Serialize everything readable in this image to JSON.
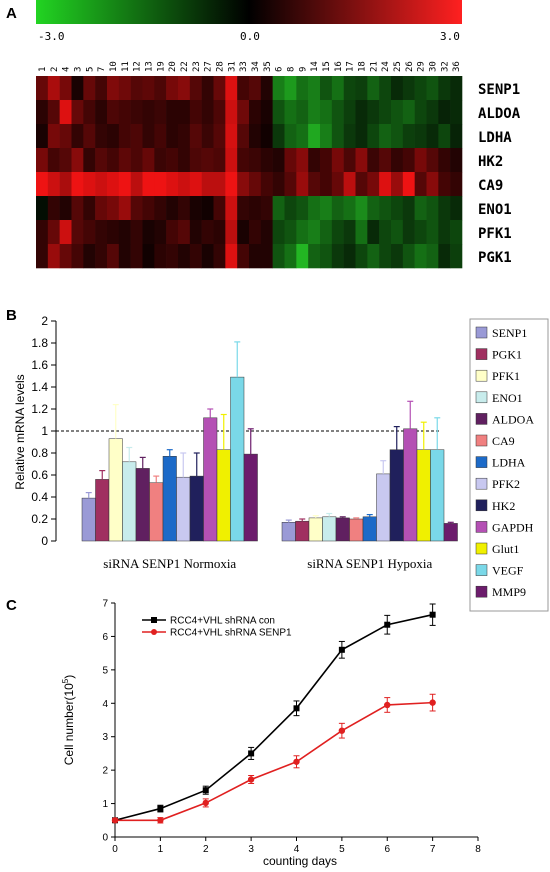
{
  "panels": {
    "a": "A",
    "b": "B",
    "c": "C"
  },
  "chart_data": [
    {
      "type": "heatmap",
      "color_scale": {
        "min_label": "-3.0",
        "mid_label": "0.0",
        "max_label": "3.0",
        "min": -3.0,
        "max": 3.0,
        "colors": [
          "#2ecc2e",
          "#000000",
          "#ff2020"
        ]
      },
      "columns": [
        "1",
        "2",
        "4",
        "3",
        "5",
        "7",
        "10",
        "11",
        "12",
        "13",
        "19",
        "20",
        "22",
        "23",
        "27",
        "28",
        "31",
        "33",
        "34",
        "35",
        "6",
        "8",
        "9",
        "14",
        "15",
        "16",
        "17",
        "18",
        "21",
        "24",
        "25",
        "26",
        "29",
        "30",
        "32",
        "36"
      ],
      "rows": [
        "SENP1",
        "ALDOA",
        "LDHA",
        "HK2",
        "CA9",
        "ENO1",
        "PFK1",
        "PGK1"
      ],
      "values": [
        [
          1.2,
          2.0,
          1.4,
          0.3,
          1.2,
          0.8,
          1.5,
          1.3,
          1.0,
          1.1,
          0.9,
          1.4,
          1.6,
          1.0,
          0.6,
          1.2,
          2.6,
          0.8,
          1.0,
          0.4,
          -1.8,
          -2.2,
          -1.6,
          -1.8,
          -1.2,
          -1.6,
          -1.0,
          -0.9,
          -1.4,
          -1.0,
          -0.6,
          -0.8,
          -1.0,
          -1.2,
          -0.8,
          -0.6
        ],
        [
          0.5,
          1.0,
          2.6,
          1.2,
          0.8,
          0.5,
          0.9,
          0.8,
          0.7,
          0.6,
          0.7,
          0.5,
          0.5,
          0.8,
          0.6,
          0.9,
          2.4,
          1.3,
          0.5,
          0.3,
          -1.2,
          -1.6,
          -1.4,
          -1.8,
          -1.6,
          -1.2,
          -0.9,
          -0.6,
          -0.8,
          -1.0,
          -1.2,
          -1.4,
          -1.0,
          -0.8,
          -0.5,
          -0.6
        ],
        [
          0.3,
          1.4,
          1.2,
          0.6,
          1.0,
          0.6,
          0.5,
          0.8,
          0.9,
          0.6,
          0.8,
          0.5,
          0.6,
          1.0,
          0.7,
          1.0,
          2.5,
          1.0,
          0.4,
          0.2,
          -0.8,
          -1.4,
          -1.6,
          -2.4,
          -1.8,
          -1.2,
          -0.8,
          -0.6,
          -1.0,
          -1.4,
          -1.2,
          -0.9,
          -0.8,
          -0.6,
          -1.0,
          -0.5
        ],
        [
          1.4,
          0.8,
          1.0,
          1.6,
          0.6,
          1.0,
          0.8,
          1.1,
          0.9,
          1.2,
          0.7,
          0.8,
          0.6,
          0.9,
          1.0,
          0.9,
          2.4,
          0.8,
          0.7,
          0.5,
          0.4,
          1.2,
          1.6,
          0.6,
          0.8,
          1.4,
          0.9,
          1.6,
          0.7,
          1.0,
          0.6,
          0.8,
          1.4,
          1.0,
          0.6,
          0.4
        ],
        [
          2.8,
          2.4,
          2.0,
          2.8,
          2.6,
          2.4,
          2.6,
          2.8,
          2.2,
          2.8,
          2.8,
          2.6,
          2.4,
          2.6,
          2.2,
          2.2,
          2.8,
          1.6,
          1.2,
          0.8,
          0.6,
          1.0,
          1.8,
          1.0,
          0.8,
          1.2,
          2.2,
          1.0,
          1.4,
          2.6,
          1.8,
          2.8,
          1.0,
          1.6,
          0.8,
          0.6
        ],
        [
          -0.2,
          0.6,
          0.4,
          1.0,
          0.6,
          1.2,
          1.4,
          1.8,
          1.0,
          0.8,
          0.6,
          0.4,
          0.6,
          0.3,
          0.2,
          0.8,
          2.4,
          0.6,
          0.5,
          0.6,
          -1.4,
          -1.0,
          -1.2,
          -1.6,
          -1.8,
          -1.4,
          -1.6,
          -2.0,
          -1.4,
          -1.2,
          -1.0,
          -0.8,
          -1.4,
          -1.2,
          -0.8,
          -0.6
        ],
        [
          0.6,
          1.2,
          2.4,
          1.0,
          0.8,
          0.6,
          0.5,
          0.4,
          0.6,
          0.3,
          0.4,
          0.8,
          1.0,
          0.4,
          0.6,
          0.5,
          2.2,
          0.3,
          0.6,
          0.4,
          -1.0,
          -1.2,
          -1.6,
          -1.8,
          -1.4,
          -1.0,
          -0.8,
          -1.6,
          -0.6,
          -1.0,
          -1.2,
          -0.8,
          -1.0,
          -1.2,
          -0.8,
          -1.0
        ],
        [
          0.6,
          1.8,
          1.2,
          0.8,
          0.4,
          0.6,
          1.0,
          0.4,
          0.6,
          0.2,
          0.5,
          0.6,
          0.4,
          0.6,
          0.3,
          0.6,
          2.6,
          0.8,
          0.4,
          0.4,
          -1.2,
          -1.6,
          -2.6,
          -1.4,
          -1.2,
          -0.8,
          -0.6,
          -1.0,
          -1.4,
          -1.0,
          -0.8,
          -1.2,
          -1.6,
          -1.4,
          -0.6,
          -0.9
        ]
      ]
    },
    {
      "type": "bar",
      "ylabel": "Relative mRNA levels",
      "ylim": [
        0,
        2
      ],
      "yticks": [
        "0",
        "0.2",
        "0.4",
        "0.6",
        "0.8",
        "1",
        "1.2",
        "1.4",
        "1.6",
        "1.8",
        "2"
      ],
      "reference_line": 1,
      "categories": [
        "siRNA SENP1 Normoxia",
        "siRNA SENP1 Hypoxia"
      ],
      "series": [
        {
          "name": "SENP1",
          "color": "#9a9ad6",
          "values": [
            0.39,
            0.17
          ],
          "errors": [
            0.05,
            0.02
          ]
        },
        {
          "name": "PGK1",
          "color": "#a03060",
          "values": [
            0.56,
            0.18
          ],
          "errors": [
            0.08,
            0.02
          ]
        },
        {
          "name": "PFK1",
          "color": "#ffffc8",
          "values": [
            0.93,
            0.21
          ],
          "errors": [
            0.31,
            0.02
          ]
        },
        {
          "name": "ENO1",
          "color": "#c8ecec",
          "values": [
            0.72,
            0.22
          ],
          "errors": [
            0.13,
            0.03
          ]
        },
        {
          "name": "ALDOA",
          "color": "#602060",
          "values": [
            0.66,
            0.21
          ],
          "errors": [
            0.1,
            0.01
          ]
        },
        {
          "name": "CA9",
          "color": "#f08080",
          "values": [
            0.53,
            0.2
          ],
          "errors": [
            0.06,
            0.01
          ]
        },
        {
          "name": "LDHA",
          "color": "#1c6ac8",
          "values": [
            0.77,
            0.22
          ],
          "errors": [
            0.06,
            0.02
          ]
        },
        {
          "name": "PFK2",
          "color": "#c8c8f0",
          "values": [
            0.58,
            0.61
          ],
          "errors": [
            0.22,
            0.12
          ]
        },
        {
          "name": "HK2",
          "color": "#20205c",
          "values": [
            0.59,
            0.83
          ],
          "errors": [
            0.21,
            0.21
          ]
        },
        {
          "name": "GAPDH",
          "color": "#b450b4",
          "values": [
            1.12,
            1.02
          ],
          "errors": [
            0.08,
            0.25
          ]
        },
        {
          "name": "Glut1",
          "color": "#f0f000",
          "values": [
            0.83,
            0.83
          ],
          "errors": [
            0.32,
            0.25
          ]
        },
        {
          "name": "VEGF",
          "color": "#7ad8e8",
          "values": [
            1.49,
            0.83
          ],
          "errors": [
            0.32,
            0.29
          ]
        },
        {
          "name": "MMP9",
          "color": "#6c1c6c",
          "values": [
            0.79,
            0.16
          ],
          "errors": [
            0.23,
            0.01
          ]
        }
      ]
    },
    {
      "type": "line",
      "xlabel": "counting days",
      "ylabel": "Cell number(10",
      "ylabel_sup": "5",
      "ylabel_end": ")",
      "xlim": [
        0,
        8
      ],
      "ylim": [
        0,
        7
      ],
      "xticks": [
        "0",
        "1",
        "2",
        "3",
        "4",
        "5",
        "6",
        "7",
        "8"
      ],
      "yticks": [
        "0",
        "1",
        "2",
        "3",
        "4",
        "5",
        "6",
        "7"
      ],
      "x": [
        0,
        1,
        2,
        3,
        4,
        5,
        6,
        7
      ],
      "series": [
        {
          "name": "RCC4+VHL shRNA con",
          "color": "#000000",
          "marker": "square",
          "values": [
            0.5,
            0.85,
            1.4,
            2.5,
            3.85,
            5.6,
            6.35,
            6.65
          ],
          "errors": [
            0.05,
            0.1,
            0.12,
            0.18,
            0.22,
            0.25,
            0.28,
            0.32
          ]
        },
        {
          "name": "RCC4+VHL shRNA SENP1",
          "color": "#e02020",
          "marker": "circle",
          "values": [
            0.5,
            0.5,
            1.02,
            1.72,
            2.25,
            3.18,
            3.95,
            4.02
          ],
          "errors": [
            0.05,
            0.08,
            0.12,
            0.12,
            0.18,
            0.22,
            0.22,
            0.25
          ]
        }
      ]
    }
  ]
}
